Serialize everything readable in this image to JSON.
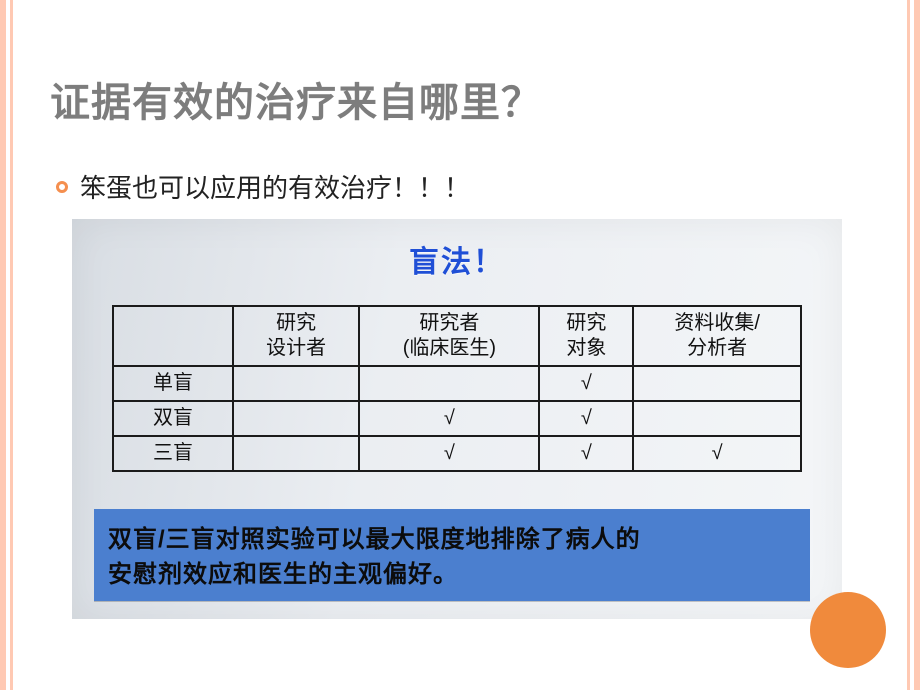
{
  "slide": {
    "title": "证据有效的治疗来自哪里？",
    "bullet": "笨蛋也可以应用的有效治疗！！！"
  },
  "photo": {
    "title": "盲法！",
    "table": {
      "columns": [
        "",
        "研究\n设计者",
        "研究者\n(临床医生)",
        "研究\n对象",
        "资料收集/\n分析者"
      ],
      "rows": [
        {
          "label": "单盲",
          "cells": [
            "",
            "",
            "√",
            ""
          ]
        },
        {
          "label": "双盲",
          "cells": [
            "",
            "√",
            "√",
            ""
          ]
        },
        {
          "label": "三盲",
          "cells": [
            "",
            "√",
            "√",
            "√"
          ]
        }
      ]
    },
    "highlight_line1": "双盲/三盲对照实验可以最大限度地排除了病人的",
    "highlight_line2": "安慰剂效应和医生的主观偏好。"
  },
  "colors": {
    "frame": "#ffc9b3",
    "title_text": "#7d7d7d",
    "bullet_ring": "#f58f4f",
    "photo_title": "#1f4fd6",
    "table_border": "#1b1b1b",
    "highlight_bg": "#4b7fcf",
    "circle": "#f08a3c"
  }
}
